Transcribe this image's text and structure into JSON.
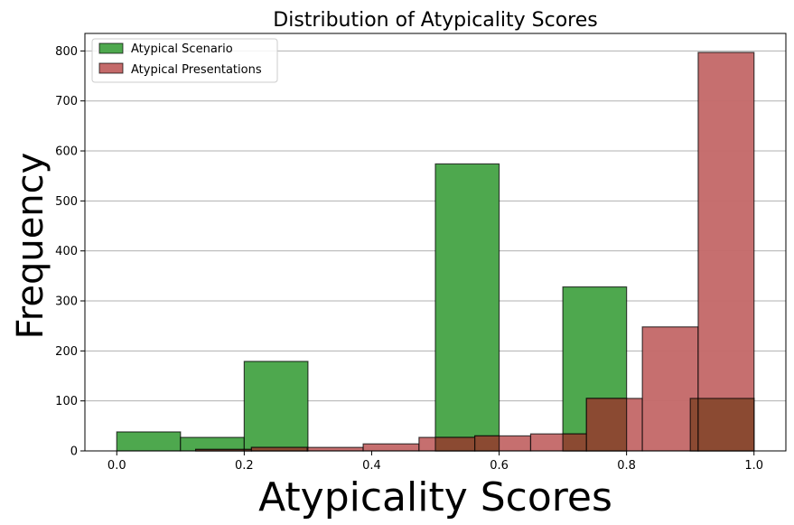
{
  "chart_data": {
    "type": "bar",
    "title": "Distribution of Atypicality Scores",
    "xlabel": "Atypicality Scores",
    "ylabel": "Frequency",
    "xlim": [
      -0.05,
      1.05
    ],
    "ylim": [
      0,
      835
    ],
    "xticks": [
      0.0,
      0.2,
      0.4,
      0.6,
      0.8,
      1.0
    ],
    "xtick_labels": [
      "0.0",
      "0.2",
      "0.4",
      "0.6",
      "0.8",
      "1.0"
    ],
    "yticks": [
      0,
      100,
      200,
      300,
      400,
      500,
      600,
      700,
      800
    ],
    "ytick_labels": [
      "0",
      "100",
      "200",
      "300",
      "400",
      "500",
      "600",
      "700",
      "800"
    ],
    "grid": "y",
    "legend": "upper-left",
    "series": [
      {
        "name": "Atypical Scenario",
        "color": "#4ea84e",
        "bins": [
          {
            "x0": 0.0,
            "x1": 0.1,
            "count": 38
          },
          {
            "x0": 0.1,
            "x1": 0.2,
            "count": 27
          },
          {
            "x0": 0.2,
            "x1": 0.3,
            "count": 179
          },
          {
            "x0": 0.5,
            "x1": 0.6,
            "count": 574
          },
          {
            "x0": 0.7,
            "x1": 0.8,
            "count": 328
          },
          {
            "x0": 0.9,
            "x1": 1.0,
            "count": 105
          }
        ]
      },
      {
        "name": "Atypical Presentations",
        "color": "#c46a6a",
        "bins": [
          {
            "x0": 0.1238,
            "x1": 0.2114,
            "count": 3
          },
          {
            "x0": 0.2114,
            "x1": 0.299,
            "count": 7
          },
          {
            "x0": 0.299,
            "x1": 0.3867,
            "count": 7
          },
          {
            "x0": 0.3867,
            "x1": 0.4743,
            "count": 14
          },
          {
            "x0": 0.4743,
            "x1": 0.5619,
            "count": 27
          },
          {
            "x0": 0.5619,
            "x1": 0.6495,
            "count": 30
          },
          {
            "x0": 0.6495,
            "x1": 0.7371,
            "count": 34
          },
          {
            "x0": 0.7371,
            "x1": 0.8248,
            "count": 105
          },
          {
            "x0": 0.8248,
            "x1": 0.9124,
            "count": 248
          },
          {
            "x0": 0.9124,
            "x1": 1.0,
            "count": 797
          }
        ]
      }
    ]
  }
}
